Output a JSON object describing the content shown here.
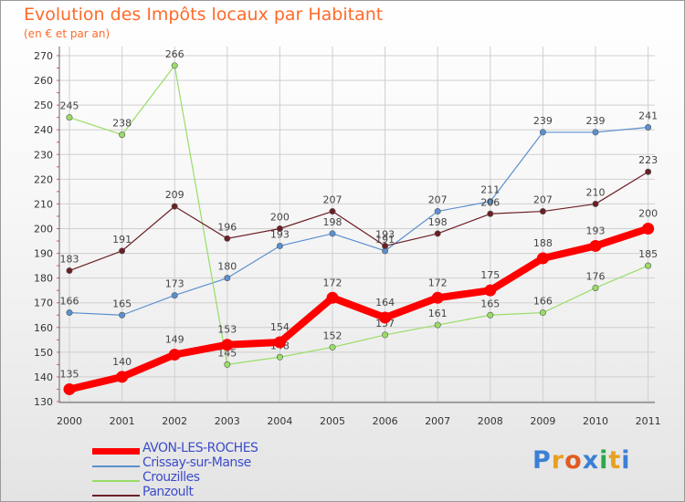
{
  "chart_data": {
    "type": "line",
    "title": "Evolution des Impôts locaux par Habitant",
    "subtitle": "(en € et par an)",
    "x": [
      "2000",
      "2001",
      "2002",
      "2003",
      "2004",
      "2005",
      "2006",
      "2007",
      "2008",
      "2009",
      "2010",
      "2011"
    ],
    "yticks": [
      "130",
      "140",
      "150",
      "160",
      "170",
      "180",
      "190",
      "200",
      "210",
      "220",
      "230",
      "240",
      "250",
      "260",
      "270"
    ],
    "ylim": [
      130,
      270
    ],
    "legend_position": "bottom-left",
    "grid": true,
    "series": [
      {
        "name": "Crissay-sur-Manse",
        "color": "#5b8fd0",
        "values": [
          166,
          165,
          173,
          180,
          193,
          198,
          191,
          207,
          211,
          239,
          239,
          241
        ]
      },
      {
        "name": "Crouzilles",
        "color": "#99dd66",
        "values": [
          245,
          238,
          266,
          145,
          148,
          152,
          157,
          161,
          165,
          166,
          176,
          185
        ]
      },
      {
        "name": "Panzoult",
        "color": "#6b1f25",
        "values": [
          183,
          191,
          209,
          196,
          200,
          207,
          193,
          198,
          206,
          207,
          210,
          223
        ]
      },
      {
        "name": "AVON-LES-ROCHES",
        "color": "#ff0000",
        "values": [
          135,
          140,
          149,
          153,
          154,
          172,
          164,
          172,
          175,
          188,
          193,
          200
        ]
      }
    ],
    "legend_order": [
      "AVON-LES-ROCHES",
      "Crissay-sur-Manse",
      "Crouzilles",
      "Panzoult"
    ]
  },
  "logo": {
    "letters": [
      "P",
      "r",
      "o",
      "x",
      "i",
      "t",
      "i"
    ],
    "colors": [
      "#3b7fd6",
      "#e8a020",
      "#e05a20",
      "#3b7fd6",
      "#2aa84a",
      "#e8a020",
      "#3b7fd6"
    ]
  }
}
